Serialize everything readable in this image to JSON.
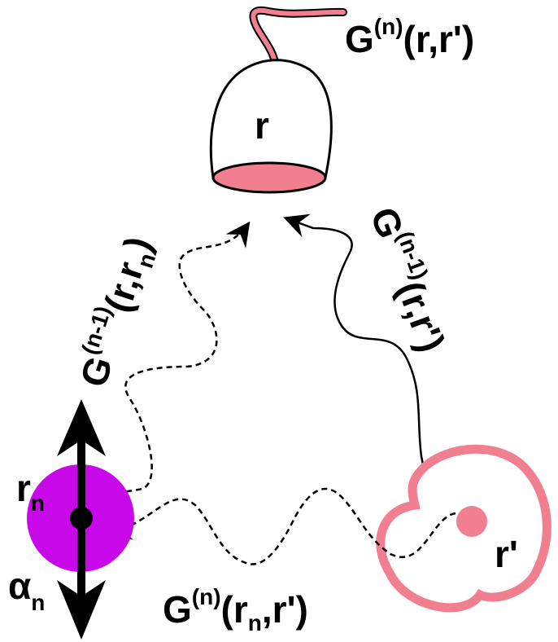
{
  "labels": {
    "detector_r": "r",
    "source_r_prime": "r'",
    "scatterer_r_n": "r",
    "scatterer_r_n_sub": "n",
    "alpha": "α",
    "alpha_sub": "n",
    "g_top": {
      "base": "G",
      "sup": "(n)",
      "args": "(r,r')"
    },
    "g_left": {
      "base": "G",
      "sup": "(n-1)",
      "args_a": "(r,r",
      "args_sub": "n",
      "args_b": ")"
    },
    "g_right": {
      "base": "G",
      "sup": "(n-1)",
      "args": "(r,r')"
    },
    "g_bottom": {
      "base": "G",
      "sup": "(n)",
      "args_a": "(r",
      "args_sub": "n",
      "args_b": ",r')"
    }
  },
  "colors": {
    "pink": "#f27f8f",
    "purple": "#c808e8",
    "black": "#000000"
  }
}
